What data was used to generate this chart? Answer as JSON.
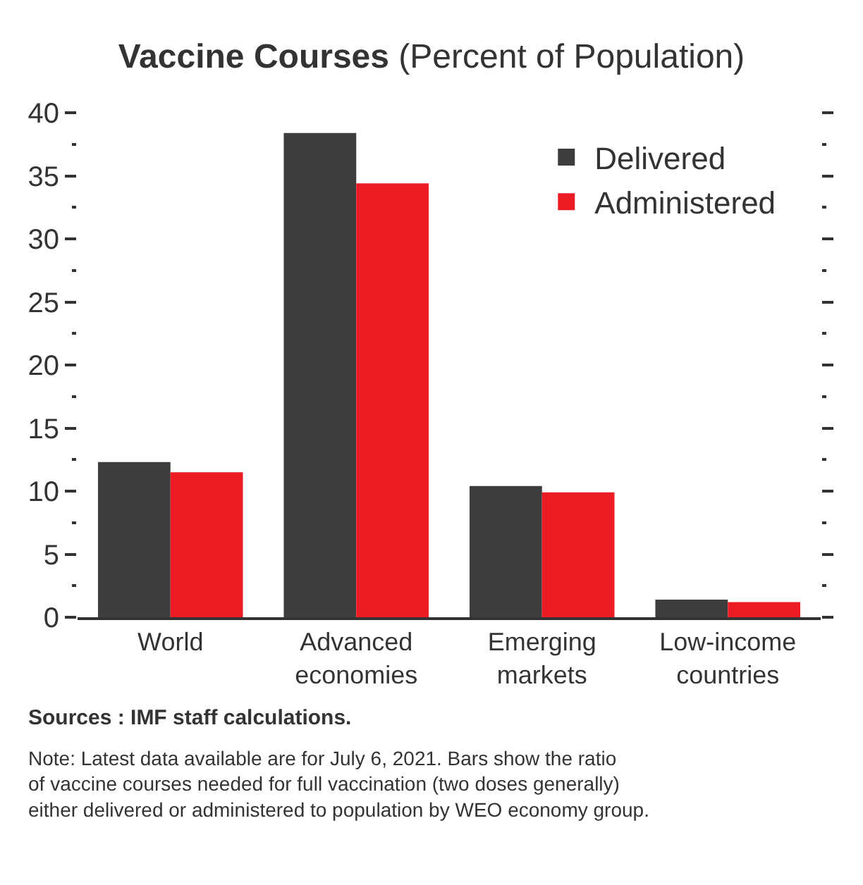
{
  "chart_data": {
    "type": "bar",
    "title": "Vaccine Courses",
    "subtitle": "(Percent of Population)",
    "categories": [
      "World",
      "Advanced\neconomies",
      "Emerging\nmarkets",
      "Low-income\ncountries"
    ],
    "series": [
      {
        "name": "Delivered",
        "color": "#3d3d3d",
        "values": [
          12.3,
          38.4,
          10.4,
          1.4
        ]
      },
      {
        "name": "Administered",
        "color": "#ed1c24",
        "values": [
          11.5,
          34.4,
          9.9,
          1.2
        ]
      }
    ],
    "ylim": [
      0,
      40
    ],
    "yticks": [
      0,
      {
        "value": 2.5,
        "label": null
      },
      5,
      {
        "value": 7.5,
        "label": null
      },
      10,
      {
        "value": 12.5,
        "label": null
      },
      15,
      {
        "value": 17.5,
        "label": null
      },
      20,
      {
        "value": 22.5,
        "label": null
      },
      25,
      {
        "value": 27.5,
        "label": null
      },
      30,
      {
        "value": 32.5,
        "label": null
      },
      35,
      {
        "value": 37.5,
        "label": null
      },
      40
    ],
    "legend": "top right",
    "annotations": [
      "Sources : IMF staff calculations.",
      "Note: Latest data available are for July 6, 2021. Bars show the ratio\nof vaccine courses needed for full vaccination (two doses generally)\neither delivered or administered to population by WEO economy group."
    ]
  }
}
